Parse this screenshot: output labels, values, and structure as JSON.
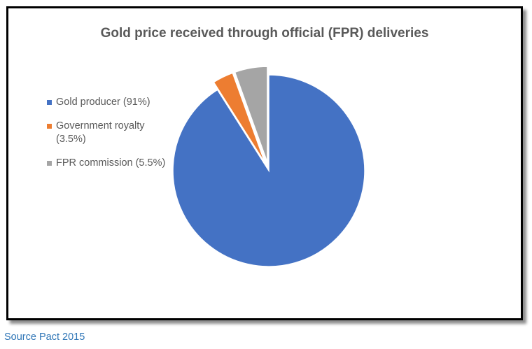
{
  "chart_data": {
    "type": "pie",
    "title": "Gold price received through official (FPR) deliveries",
    "exploded": true,
    "start_angle_deg": 0,
    "legend_position": "left",
    "slices": [
      {
        "label": "Gold producer (91%)",
        "value": 91,
        "color": "#4472c4"
      },
      {
        "label": "Government royalty (3.5%)",
        "value": 3.5,
        "color": "#ed7d31"
      },
      {
        "label": "FPR commission (5.5%)",
        "value": 5.5,
        "color": "#a5a5a5"
      }
    ]
  },
  "source": "Source Pact 2015"
}
